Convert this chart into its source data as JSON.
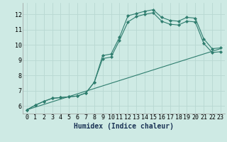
{
  "title": "",
  "xlabel": "Humidex (Indice chaleur)",
  "bg_color": "#ceeae4",
  "grid_color": "#b8d8d2",
  "line_color": "#2e7d6e",
  "xlim": [
    -0.5,
    23.5
  ],
  "ylim": [
    5.5,
    12.75
  ],
  "yticks": [
    6,
    7,
    8,
    9,
    10,
    11,
    12
  ],
  "xticks": [
    0,
    1,
    2,
    3,
    4,
    5,
    6,
    7,
    8,
    9,
    10,
    11,
    12,
    13,
    14,
    15,
    16,
    17,
    18,
    19,
    20,
    21,
    22,
    23
  ],
  "line1_x": [
    0,
    1,
    2,
    3,
    4,
    5,
    6,
    7,
    8,
    9,
    10,
    11,
    12,
    13,
    14,
    15,
    16,
    17,
    18,
    19,
    20,
    21,
    22,
    23
  ],
  "line1_y": [
    5.75,
    6.05,
    6.3,
    6.5,
    6.55,
    6.6,
    6.65,
    6.85,
    7.55,
    9.3,
    9.4,
    10.5,
    11.9,
    12.05,
    12.2,
    12.3,
    11.8,
    11.6,
    11.55,
    11.8,
    11.75,
    10.4,
    9.75,
    9.8
  ],
  "line2_x": [
    0,
    1,
    2,
    3,
    4,
    5,
    6,
    7,
    8,
    9,
    10,
    11,
    12,
    13,
    14,
    15,
    16,
    17,
    18,
    19,
    20,
    21,
    22,
    23
  ],
  "line2_y": [
    5.75,
    6.05,
    6.3,
    6.5,
    6.55,
    6.6,
    6.65,
    6.85,
    7.55,
    9.1,
    9.2,
    10.3,
    11.5,
    11.85,
    12.0,
    12.1,
    11.55,
    11.35,
    11.3,
    11.55,
    11.5,
    10.1,
    9.5,
    9.55
  ],
  "line3_x": [
    0,
    23
  ],
  "line3_y": [
    5.75,
    9.75
  ],
  "xlabel_fontsize": 7,
  "tick_fontsize": 6
}
